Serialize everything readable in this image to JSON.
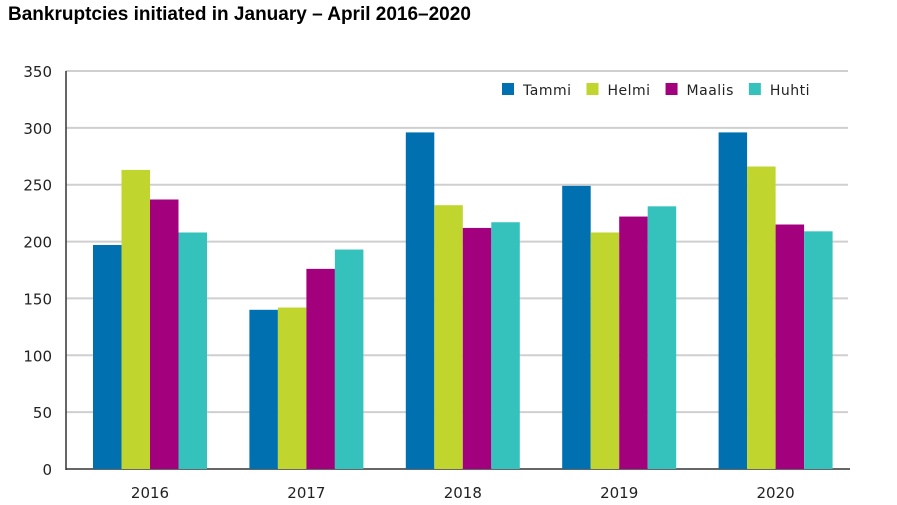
{
  "chart_data": {
    "type": "bar",
    "title": "Bankruptcies initiated in January – April 2016–2020",
    "xlabel": "",
    "ylabel": "",
    "categories": [
      "2016",
      "2017",
      "2018",
      "2019",
      "2020"
    ],
    "ylim": [
      0,
      350
    ],
    "yticks": [
      0,
      50,
      100,
      150,
      200,
      250,
      300,
      350
    ],
    "grid": true,
    "legend_position": "top-right",
    "series": [
      {
        "name": "Tammi",
        "color": "#0070b0",
        "values": [
          197,
          140,
          296,
          249,
          296
        ]
      },
      {
        "name": "Helmi",
        "color": "#c0d62e",
        "values": [
          263,
          142,
          232,
          208,
          266
        ]
      },
      {
        "name": "Maalis",
        "color": "#a3007e",
        "values": [
          237,
          176,
          212,
          222,
          215
        ]
      },
      {
        "name": "Huhti",
        "color": "#36c2bc",
        "values": [
          208,
          193,
          217,
          231,
          209
        ]
      }
    ]
  }
}
